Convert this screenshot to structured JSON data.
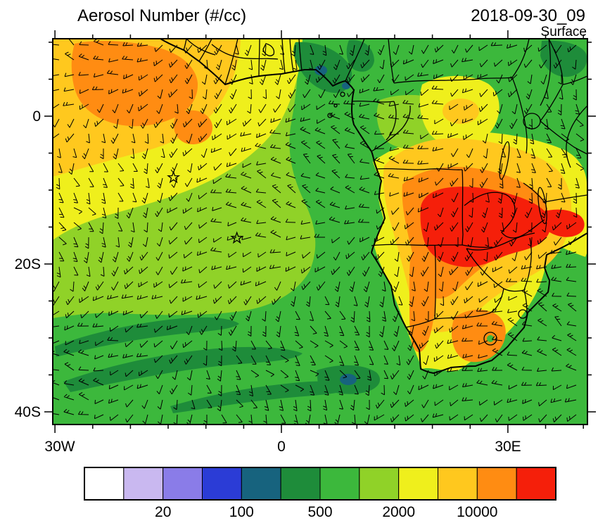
{
  "header": {
    "title": "Aerosol Number (#/cc)",
    "datetime": "2018-09-30_09",
    "level": "Surface"
  },
  "axes": {
    "y_tick_labels": [
      "0",
      "20S",
      "40S"
    ],
    "x_tick_labels": [
      "30W",
      "0",
      "30E"
    ]
  },
  "colorbar": {
    "colors": [
      "#FFFFFF",
      "#C9B8F0",
      "#8A7CE8",
      "#2B3CD6",
      "#17637E",
      "#1E8C3A",
      "#3CB83C",
      "#90D228",
      "#EFEF1C",
      "#FFC81E",
      "#FF8C12",
      "#F51F0A"
    ],
    "tick_labels": [
      "20",
      "100",
      "500",
      "2000",
      "10000"
    ],
    "tick_boundary_indices": [
      2,
      4,
      6,
      8,
      10
    ]
  },
  "chart_data": {
    "type": "heatmap",
    "title": "Aerosol Number (#/cc)",
    "datetime": "2018-09-30_09",
    "level": "Surface",
    "units": "#/cc",
    "projection": "lat-lon map of Africa and South Atlantic",
    "lon_range_deg": [
      -31.5,
      40.5
    ],
    "lat_range_deg": [
      -41.7,
      10.5
    ],
    "x_tick_labels": [
      "30W",
      "0",
      "30E"
    ],
    "y_tick_labels": [
      "0",
      "20S",
      "40S"
    ],
    "colorbar_tick_values": [
      20,
      100,
      500,
      2000,
      10000
    ],
    "colorbar_cell_bounds_est": [
      10,
      20,
      50,
      100,
      200,
      500,
      1000,
      2000,
      5000,
      10000,
      20000
    ],
    "overlays": [
      "wind barbs",
      "coastlines",
      "country borders",
      "star markers"
    ],
    "markers": [
      {
        "type": "star",
        "lon_deg": -14.3,
        "lat_deg": -8.3
      },
      {
        "type": "star",
        "lon_deg": -5.9,
        "lat_deg": -16.5
      }
    ],
    "regions": [
      {
        "area": "NW Atlantic plume off West Africa",
        "approx_value": "5000-20000"
      },
      {
        "area": "Central-southern Africa core (Angola/Zambia/Zimbabwe/Mozambique)",
        "approx_value": ">20000"
      },
      {
        "area": "Mid South Atlantic",
        "approx_value": "500-2000"
      },
      {
        "area": "SW ocean streaks",
        "approx_value": "200-500"
      },
      {
        "area": "Namibia coast / Botswana band",
        "approx_value": "2000-10000"
      }
    ]
  }
}
